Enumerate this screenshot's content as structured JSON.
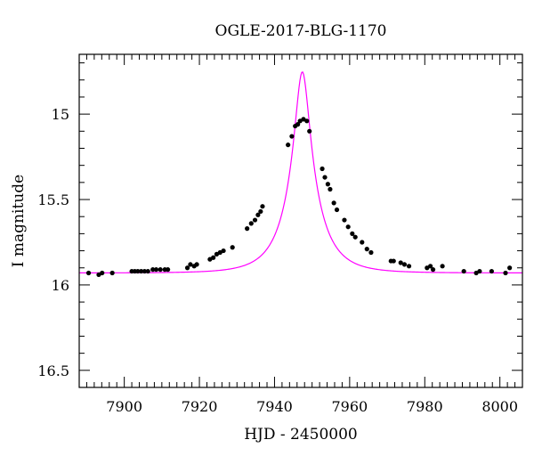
{
  "chart_data": {
    "type": "scatter",
    "title": "OGLE-2017-BLG-1170",
    "xlabel": "HJD - 2450000",
    "ylabel": "I magnitude",
    "xlim": [
      7888,
      8006
    ],
    "ylim": [
      16.6,
      14.65
    ],
    "y_inverted": true,
    "x_major_ticks": [
      7900,
      7920,
      7940,
      7960,
      7980,
      8000
    ],
    "x_minor_step": 2,
    "y_major_ticks": [
      15,
      15.5,
      16,
      16.5
    ],
    "y_tick_labels": [
      "15",
      "15.5",
      "16",
      "16.5"
    ],
    "y_minor_step": 0.1,
    "grid": false,
    "series": [
      {
        "kind": "points",
        "color": "#000000",
        "points": [
          [
            7890.5,
            15.93
          ],
          [
            7893.2,
            15.94
          ],
          [
            7894.1,
            15.93
          ],
          [
            7896.8,
            15.93
          ],
          [
            7902.0,
            15.92
          ],
          [
            7902.8,
            15.92
          ],
          [
            7903.6,
            15.92
          ],
          [
            7904.5,
            15.92
          ],
          [
            7905.4,
            15.92
          ],
          [
            7906.3,
            15.92
          ],
          [
            7907.6,
            15.91
          ],
          [
            7908.5,
            15.91
          ],
          [
            7909.6,
            15.91
          ],
          [
            7910.8,
            15.91
          ],
          [
            7911.6,
            15.91
          ],
          [
            7916.8,
            15.9
          ],
          [
            7917.6,
            15.88
          ],
          [
            7918.6,
            15.89
          ],
          [
            7919.3,
            15.88
          ],
          [
            7922.8,
            15.85
          ],
          [
            7923.7,
            15.84
          ],
          [
            7924.6,
            15.82
          ],
          [
            7925.5,
            15.81
          ],
          [
            7926.4,
            15.8
          ],
          [
            7928.8,
            15.78
          ],
          [
            7932.7,
            15.67
          ],
          [
            7933.8,
            15.64
          ],
          [
            7934.8,
            15.62
          ],
          [
            7935.6,
            15.59
          ],
          [
            7936.3,
            15.57
          ],
          [
            7936.8,
            15.54
          ],
          [
            7943.6,
            15.18
          ],
          [
            7944.6,
            15.13
          ],
          [
            7945.5,
            15.07
          ],
          [
            7946.2,
            15.06
          ],
          [
            7946.8,
            15.04
          ],
          [
            7947.7,
            15.03
          ],
          [
            7948.6,
            15.04
          ],
          [
            7949.3,
            15.1
          ],
          [
            7952.7,
            15.32
          ],
          [
            7953.4,
            15.37
          ],
          [
            7954.2,
            15.41
          ],
          [
            7954.8,
            15.44
          ],
          [
            7955.8,
            15.52
          ],
          [
            7956.6,
            15.56
          ],
          [
            7958.6,
            15.62
          ],
          [
            7959.6,
            15.66
          ],
          [
            7960.7,
            15.7
          ],
          [
            7961.5,
            15.72
          ],
          [
            7963.3,
            15.75
          ],
          [
            7964.6,
            15.79
          ],
          [
            7965.7,
            15.81
          ],
          [
            7971.0,
            15.86
          ],
          [
            7971.7,
            15.86
          ],
          [
            7973.6,
            15.87
          ],
          [
            7974.6,
            15.88
          ],
          [
            7975.8,
            15.89
          ],
          [
            7980.6,
            15.9
          ],
          [
            7981.5,
            15.89
          ],
          [
            7982.2,
            15.91
          ],
          [
            7984.7,
            15.89
          ],
          [
            7990.4,
            15.92
          ],
          [
            7993.7,
            15.93
          ],
          [
            7994.6,
            15.92
          ],
          [
            7997.8,
            15.92
          ],
          [
            8001.5,
            15.93
          ],
          [
            8002.6,
            15.9
          ]
        ]
      },
      {
        "kind": "model-curve",
        "color": "#ff00ff",
        "model": {
          "t0": 7947.4,
          "u0": 0.21,
          "tE": 8.6,
          "baseline_mag": 15.93,
          "blend_fraction": 0.51
        }
      }
    ]
  }
}
